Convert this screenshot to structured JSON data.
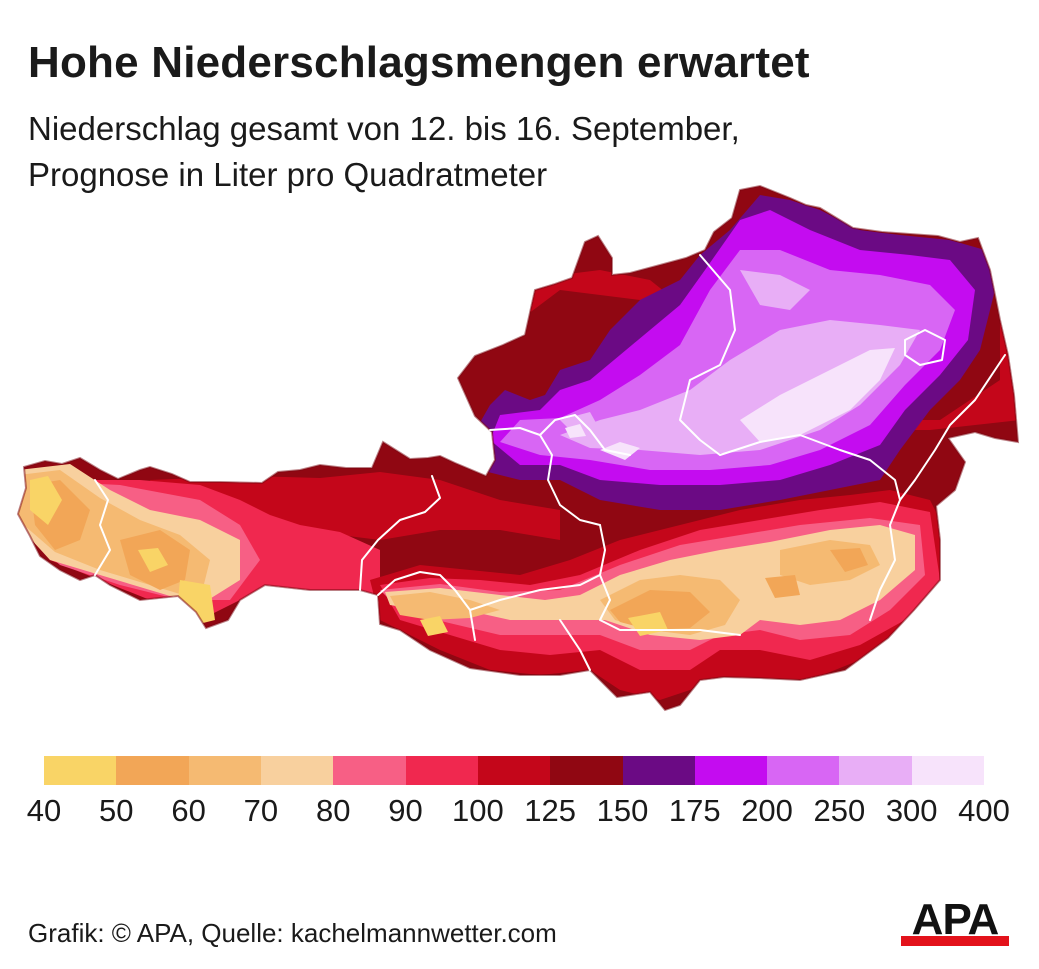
{
  "title": "Hohe Niederschlagsmengen erwartet",
  "subtitle_line1": "Niederschlag gesamt von 12. bis 16. September,",
  "subtitle_line2": "Prognose in Liter pro Quadratmeter",
  "legend": {
    "colors": [
      "#f9d466",
      "#f2a657",
      "#f5ba72",
      "#f8d09e",
      "#f75f85",
      "#f0284f",
      "#c4061a",
      "#900712",
      "#6b0a84",
      "#c40cf0",
      "#d866f4",
      "#e8aef6",
      "#f7e3fb"
    ],
    "labels": [
      "40",
      "50",
      "60",
      "70",
      "80",
      "90",
      "100",
      "125",
      "150",
      "175",
      "200",
      "250",
      "300",
      "400"
    ]
  },
  "source": "Grafik: © APA, Quelle: kachelmannwetter.com",
  "logo": {
    "text": "APA",
    "bar_color": "#e3121b",
    "text_color": "#111111"
  }
}
